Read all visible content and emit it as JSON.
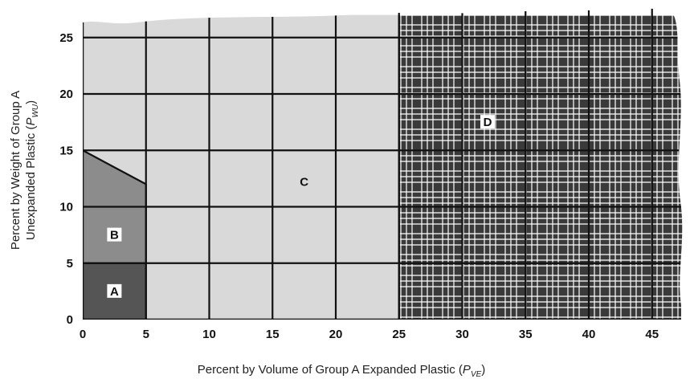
{
  "chart_data": {
    "type": "area",
    "title": "",
    "xlabel": {
      "text": "Percent by Volume of Group A Expanded Plastic",
      "symbol": "P",
      "subscript": "VE"
    },
    "ylabel": {
      "line1": "Percent by Weight of Group A",
      "line2_text": "Unexpanded Plastic",
      "symbol": "P",
      "subscript": "WU"
    },
    "xlim": [
      0,
      47.5
    ],
    "ylim": [
      0,
      27
    ],
    "x_ticks": [
      0,
      5,
      10,
      15,
      20,
      25,
      30,
      35,
      40,
      45
    ],
    "y_ticks": [
      0,
      5,
      10,
      15,
      20,
      25
    ],
    "grid": true,
    "regions": [
      {
        "name": "A",
        "label": "A",
        "fill": "#555555",
        "polygon": [
          [
            0,
            0
          ],
          [
            5,
            0
          ],
          [
            5,
            5
          ],
          [
            0,
            5
          ]
        ],
        "label_at": [
          2.5,
          2.5
        ]
      },
      {
        "name": "B",
        "label": "B",
        "fill": "#8c8c8c",
        "polygon": [
          [
            0,
            5
          ],
          [
            5,
            5
          ],
          [
            5,
            12
          ],
          [
            0,
            15
          ]
        ],
        "label_at": [
          2.5,
          7.5
        ]
      },
      {
        "name": "C",
        "label": "C",
        "fill": "#d9d9d9",
        "polygon": [
          [
            0,
            15
          ],
          [
            5,
            12
          ],
          [
            5,
            0
          ],
          [
            25,
            0
          ],
          [
            25,
            27
          ],
          [
            0,
            27
          ]
        ],
        "label_at": [
          17.5,
          12.2
        ]
      },
      {
        "name": "D",
        "label": "D",
        "fill": "#3a3a3a",
        "pattern": "white-crosshatch",
        "polygon": [
          [
            25,
            0
          ],
          [
            47.5,
            0
          ],
          [
            47.5,
            27
          ],
          [
            25,
            27
          ]
        ],
        "label_at": [
          32,
          17.5
        ]
      }
    ],
    "boundaries": [
      [
        [
          0,
          5
        ],
        [
          5,
          5
        ]
      ],
      [
        [
          0,
          15
        ],
        [
          5,
          12
        ]
      ],
      [
        [
          5,
          0
        ],
        [
          5,
          12
        ]
      ],
      [
        [
          25,
          0
        ],
        [
          25,
          27
        ]
      ]
    ]
  }
}
